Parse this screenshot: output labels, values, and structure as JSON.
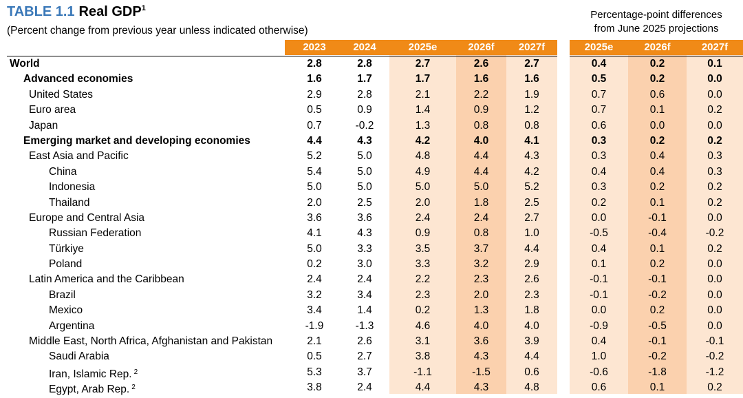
{
  "title": {
    "label": "TABLE 1.1",
    "text": "Real GDP",
    "footnote": "1"
  },
  "subtitle": "(Percent change from previous year unless indicated otherwise)",
  "right_header": {
    "line1": "Percentage-point differences",
    "line2": "from June 2025 projections"
  },
  "columns": [
    "2023",
    "2024",
    "2025e",
    "2026f",
    "2027f"
  ],
  "diff_columns": [
    "2025e",
    "2026f",
    "2027f"
  ],
  "colors": {
    "title_blue": "#3a78b8",
    "header_orange": "#f08a17",
    "shade_light": "#fde6d2",
    "shade_dark": "#fbd1ae"
  },
  "rows": [
    {
      "name": "World",
      "level": 0,
      "bold": true,
      "values": [
        "2.8",
        "2.8",
        "2.7",
        "2.6",
        "2.7"
      ],
      "diffs": [
        "0.4",
        "0.2",
        "0.1"
      ]
    },
    {
      "name": "Advanced economies",
      "level": 1,
      "bold": true,
      "values": [
        "1.6",
        "1.7",
        "1.7",
        "1.6",
        "1.6"
      ],
      "diffs": [
        "0.5",
        "0.2",
        "0.0"
      ]
    },
    {
      "name": "United States",
      "level": 2,
      "bold": false,
      "values": [
        "2.9",
        "2.8",
        "2.1",
        "2.2",
        "1.9"
      ],
      "diffs": [
        "0.7",
        "0.6",
        "0.0"
      ]
    },
    {
      "name": "Euro area",
      "level": 2,
      "bold": false,
      "values": [
        "0.5",
        "0.9",
        "1.4",
        "0.9",
        "1.2"
      ],
      "diffs": [
        "0.7",
        "0.1",
        "0.2"
      ]
    },
    {
      "name": "Japan",
      "level": 2,
      "bold": false,
      "values": [
        "0.7",
        "-0.2",
        "1.3",
        "0.8",
        "0.8"
      ],
      "diffs": [
        "0.6",
        "0.0",
        "0.0"
      ]
    },
    {
      "name": "Emerging market and developing economies",
      "level": 1,
      "bold": true,
      "values": [
        "4.4",
        "4.3",
        "4.2",
        "4.0",
        "4.1"
      ],
      "diffs": [
        "0.3",
        "0.2",
        "0.2"
      ]
    },
    {
      "name": "East Asia and Pacific",
      "level": 2,
      "bold": false,
      "values": [
        "5.2",
        "5.0",
        "4.8",
        "4.4",
        "4.3"
      ],
      "diffs": [
        "0.3",
        "0.4",
        "0.3"
      ]
    },
    {
      "name": "China",
      "level": 3,
      "bold": false,
      "values": [
        "5.4",
        "5.0",
        "4.9",
        "4.4",
        "4.2"
      ],
      "diffs": [
        "0.4",
        "0.4",
        "0.3"
      ]
    },
    {
      "name": "Indonesia",
      "level": 3,
      "bold": false,
      "values": [
        "5.0",
        "5.0",
        "5.0",
        "5.0",
        "5.2"
      ],
      "diffs": [
        "0.3",
        "0.2",
        "0.2"
      ]
    },
    {
      "name": "Thailand",
      "level": 3,
      "bold": false,
      "values": [
        "2.0",
        "2.5",
        "2.0",
        "1.8",
        "2.5"
      ],
      "diffs": [
        "0.2",
        "0.1",
        "0.2"
      ]
    },
    {
      "name": "Europe and Central Asia",
      "level": 2,
      "bold": false,
      "values": [
        "3.6",
        "3.6",
        "2.4",
        "2.4",
        "2.7"
      ],
      "diffs": [
        "0.0",
        "-0.1",
        "0.0"
      ]
    },
    {
      "name": "Russian Federation",
      "level": 3,
      "bold": false,
      "values": [
        "4.1",
        "4.3",
        "0.9",
        "0.8",
        "1.0"
      ],
      "diffs": [
        "-0.5",
        "-0.4",
        "-0.2"
      ]
    },
    {
      "name": "Türkiye",
      "level": 3,
      "bold": false,
      "values": [
        "5.0",
        "3.3",
        "3.5",
        "3.7",
        "4.4"
      ],
      "diffs": [
        "0.4",
        "0.1",
        "0.2"
      ]
    },
    {
      "name": "Poland",
      "level": 3,
      "bold": false,
      "values": [
        "0.2",
        "3.0",
        "3.3",
        "3.2",
        "2.9"
      ],
      "diffs": [
        "0.1",
        "0.2",
        "0.0"
      ]
    },
    {
      "name": "Latin America and the Caribbean",
      "level": 2,
      "bold": false,
      "values": [
        "2.4",
        "2.4",
        "2.2",
        "2.3",
        "2.6"
      ],
      "diffs": [
        "-0.1",
        "-0.1",
        "0.0"
      ]
    },
    {
      "name": "Brazil",
      "level": 3,
      "bold": false,
      "values": [
        "3.2",
        "3.4",
        "2.3",
        "2.0",
        "2.3"
      ],
      "diffs": [
        "-0.1",
        "-0.2",
        "0.0"
      ]
    },
    {
      "name": "Mexico",
      "level": 3,
      "bold": false,
      "values": [
        "3.4",
        "1.4",
        "0.2",
        "1.3",
        "1.8"
      ],
      "diffs": [
        "0.0",
        "0.2",
        "0.0"
      ]
    },
    {
      "name": "Argentina",
      "level": 3,
      "bold": false,
      "values": [
        "-1.9",
        "-1.3",
        "4.6",
        "4.0",
        "4.0"
      ],
      "diffs": [
        "-0.9",
        "-0.5",
        "0.0"
      ]
    },
    {
      "name": "Middle East, North Africa, Afghanistan and Pakistan",
      "level": 2,
      "bold": false,
      "values": [
        "2.1",
        "2.6",
        "3.1",
        "3.6",
        "3.9"
      ],
      "diffs": [
        "0.4",
        "-0.1",
        "-0.1"
      ]
    },
    {
      "name": "Saudi Arabia",
      "level": 3,
      "bold": false,
      "values": [
        "0.5",
        "2.7",
        "3.8",
        "4.3",
        "4.4"
      ],
      "diffs": [
        "1.0",
        "-0.2",
        "-0.2"
      ]
    },
    {
      "name": "Iran, Islamic Rep.",
      "level": 3,
      "bold": false,
      "footnote": "2",
      "values": [
        "5.3",
        "3.7",
        "-1.1",
        "-1.5",
        "0.6"
      ],
      "diffs": [
        "-0.6",
        "-1.8",
        "-1.2"
      ]
    },
    {
      "name": "Egypt, Arab Rep.",
      "level": 3,
      "bold": false,
      "footnote": "2",
      "values": [
        "3.8",
        "2.4",
        "4.4",
        "4.3",
        "4.8"
      ],
      "diffs": [
        "0.6",
        "0.1",
        "0.2"
      ]
    }
  ]
}
